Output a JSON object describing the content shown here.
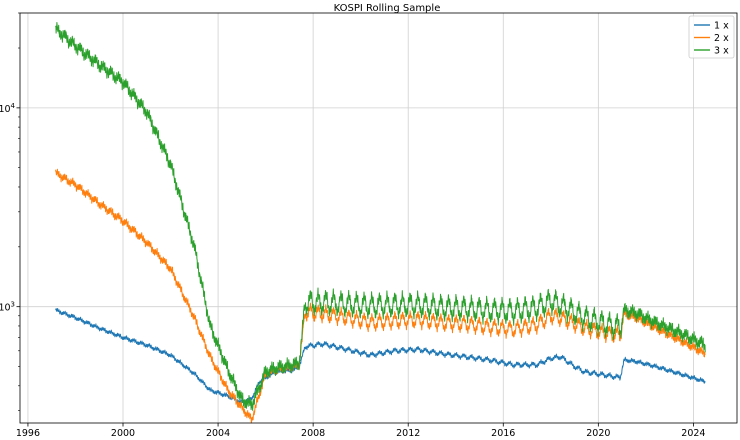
{
  "chart_data": {
    "type": "line",
    "title": "KOSPI Rolling Sample",
    "xlabel": "",
    "ylabel": "",
    "x_scale": "date",
    "y_scale": "log",
    "xlim": [
      "1995-09-01",
      "2025-11-01"
    ],
    "ylim": [
      260,
      30000
    ],
    "x_ticks": [
      "1996",
      "2000",
      "2004",
      "2008",
      "2012",
      "2016",
      "2020",
      "2024"
    ],
    "x_tick_dates": [
      "1996-01-01",
      "2000-01-01",
      "2004-01-01",
      "2008-01-01",
      "2012-01-01",
      "2016-01-01",
      "2020-01-01",
      "2024-01-01"
    ],
    "y_ticks": [
      {
        "value": 1000,
        "base": "10",
        "exp": "3"
      },
      {
        "value": 10000,
        "base": "10",
        "exp": "4"
      }
    ],
    "grid": true,
    "legend": "top-right",
    "series": [
      {
        "name": "1 x",
        "color": "#1f77b4",
        "points": [
          [
            "1997-03-01",
            960
          ],
          [
            "1998-01-01",
            880
          ],
          [
            "1999-01-01",
            780
          ],
          [
            "2000-01-01",
            700
          ],
          [
            "2001-01-01",
            640
          ],
          [
            "2002-01-01",
            570
          ],
          [
            "2003-01-01",
            460
          ],
          [
            "2003-09-01",
            380
          ],
          [
            "2004-06-01",
            355
          ],
          [
            "2005-01-01",
            330
          ],
          [
            "2005-06-01",
            345
          ],
          [
            "2005-10-01",
            420
          ],
          [
            "2006-06-01",
            470
          ],
          [
            "2007-03-01",
            480
          ],
          [
            "2007-06-01",
            500
          ],
          [
            "2007-09-01",
            630
          ],
          [
            "2008-06-01",
            650
          ],
          [
            "2009-06-01",
            610
          ],
          [
            "2010-06-01",
            570
          ],
          [
            "2011-06-01",
            600
          ],
          [
            "2012-06-01",
            610
          ],
          [
            "2013-06-01",
            580
          ],
          [
            "2014-06-01",
            560
          ],
          [
            "2015-06-01",
            540
          ],
          [
            "2016-06-01",
            510
          ],
          [
            "2017-06-01",
            510
          ],
          [
            "2018-01-01",
            550
          ],
          [
            "2018-06-01",
            560
          ],
          [
            "2019-01-01",
            500
          ],
          [
            "2019-06-01",
            470
          ],
          [
            "2020-06-01",
            450
          ],
          [
            "2020-12-01",
            440
          ],
          [
            "2021-02-01",
            540
          ],
          [
            "2021-08-01",
            530
          ],
          [
            "2022-06-01",
            500
          ],
          [
            "2023-06-01",
            460
          ],
          [
            "2024-07-01",
            420
          ]
        ]
      },
      {
        "name": "2 x",
        "color": "#ff7f0e",
        "points": [
          [
            "1997-03-01",
            4700
          ],
          [
            "1998-01-01",
            4100
          ],
          [
            "1999-01-01",
            3300
          ],
          [
            "2000-01-01",
            2700
          ],
          [
            "2001-01-01",
            2100
          ],
          [
            "2002-01-01",
            1550
          ],
          [
            "2003-01-01",
            880
          ],
          [
            "2003-09-01",
            560
          ],
          [
            "2004-06-01",
            380
          ],
          [
            "2005-01-01",
            310
          ],
          [
            "2005-06-01",
            270
          ],
          [
            "2006-01-01",
            460
          ],
          [
            "2006-06-01",
            480
          ],
          [
            "2007-03-01",
            500
          ],
          [
            "2007-06-01",
            510
          ],
          [
            "2007-09-01",
            940
          ],
          [
            "2008-06-01",
            920
          ],
          [
            "2009-06-01",
            880
          ],
          [
            "2010-06-01",
            830
          ],
          [
            "2011-06-01",
            850
          ],
          [
            "2012-06-01",
            860
          ],
          [
            "2013-06-01",
            830
          ],
          [
            "2014-06-01",
            820
          ],
          [
            "2015-06-01",
            790
          ],
          [
            "2016-06-01",
            770
          ],
          [
            "2017-06-01",
            810
          ],
          [
            "2018-01-01",
            900
          ],
          [
            "2018-06-01",
            880
          ],
          [
            "2019-06-01",
            780
          ],
          [
            "2020-06-01",
            730
          ],
          [
            "2020-12-01",
            720
          ],
          [
            "2021-02-01",
            920
          ],
          [
            "2021-08-01",
            880
          ],
          [
            "2022-06-01",
            780
          ],
          [
            "2023-06-01",
            680
          ],
          [
            "2024-07-01",
            580
          ]
        ]
      },
      {
        "name": "3 x",
        "color": "#2ca02c",
        "points": [
          [
            "1997-03-01",
            25000
          ],
          [
            "1998-01-01",
            20500
          ],
          [
            "1999-01-01",
            16500
          ],
          [
            "2000-01-01",
            13500
          ],
          [
            "2001-01-01",
            9500
          ],
          [
            "2002-01-01",
            5200
          ],
          [
            "2003-01-01",
            2000
          ],
          [
            "2003-09-01",
            800
          ],
          [
            "2004-06-01",
            480
          ],
          [
            "2005-01-01",
            340
          ],
          [
            "2005-06-01",
            320
          ],
          [
            "2006-01-01",
            470
          ],
          [
            "2006-06-01",
            490
          ],
          [
            "2007-03-01",
            510
          ],
          [
            "2007-06-01",
            520
          ],
          [
            "2007-09-01",
            1050
          ],
          [
            "2008-06-01",
            1050
          ],
          [
            "2009-06-01",
            1030
          ],
          [
            "2010-06-01",
            1010
          ],
          [
            "2011-06-01",
            1020
          ],
          [
            "2012-06-01",
            1020
          ],
          [
            "2013-06-01",
            990
          ],
          [
            "2014-06-01",
            980
          ],
          [
            "2015-06-01",
            960
          ],
          [
            "2016-06-01",
            950
          ],
          [
            "2017-06-01",
            990
          ],
          [
            "2018-01-01",
            1070
          ],
          [
            "2018-06-01",
            1020
          ],
          [
            "2019-06-01",
            880
          ],
          [
            "2020-06-01",
            810
          ],
          [
            "2020-12-01",
            790
          ],
          [
            "2021-02-01",
            960
          ],
          [
            "2021-08-01",
            930
          ],
          [
            "2022-06-01",
            830
          ],
          [
            "2023-06-01",
            740
          ],
          [
            "2024-07-01",
            640
          ]
        ]
      }
    ]
  }
}
